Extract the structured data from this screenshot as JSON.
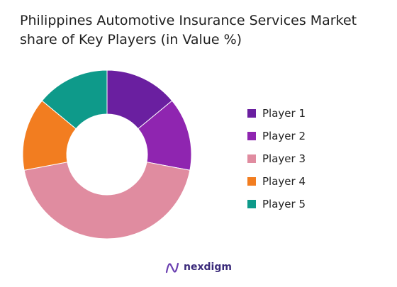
{
  "chart_data": {
    "type": "pie",
    "title": "Philippines Automotive Insurance Services Market share of Key Players (in Value %)",
    "categories": [
      "Player 1",
      "Player 2",
      "Player 3",
      "Player 4",
      "Player 5"
    ],
    "values": [
      14,
      14,
      44,
      14,
      14
    ],
    "colors": [
      "#6a1fa0",
      "#8f25b0",
      "#e08ca0",
      "#f27d20",
      "#0e9a8a"
    ],
    "legend_position": "right"
  },
  "brand": {
    "name": "nexdigm",
    "logo_icon": "nexdigm-logo-icon",
    "color": "#3a2a7a"
  }
}
